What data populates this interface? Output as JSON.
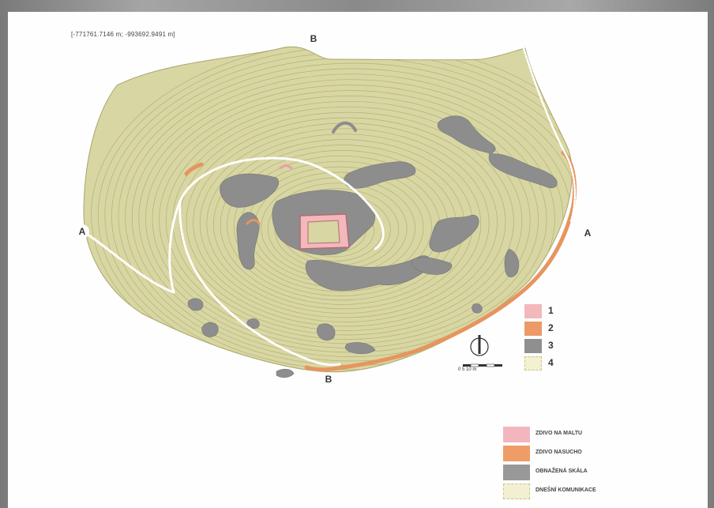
{
  "coordinate_label": "[-771761.7146 m; -993692.9491 m]",
  "section_markers": {
    "b_top": "B",
    "a_left": "A",
    "a_right": "A",
    "b_bottom": "B"
  },
  "legend_numbered": [
    {
      "num": "1",
      "color": "#f2b8bc"
    },
    {
      "num": "2",
      "color": "#ec9a67"
    },
    {
      "num": "3",
      "color": "#8f8f8f"
    },
    {
      "num": "4",
      "color": "#f3f1cf"
    }
  ],
  "legend_described": [
    {
      "label": "ZDIVO NA MALTU",
      "color": "#f3b6bf"
    },
    {
      "label": "ZDIVO NASUCHO",
      "color": "#ee9d69"
    },
    {
      "label": "OBNAŽENÁ SKÁLA",
      "color": "#999999"
    },
    {
      "label": "DNEŠNÍ KOMUNIKACE",
      "color": "#f2f0d1"
    }
  ],
  "scale_bar": {
    "label": "0      5      10 m"
  },
  "colors": {
    "terrain": "#d9d7a3",
    "contour": "#b4b277",
    "rock": "#8c8c8c",
    "masonry_mortar": "#f2b8bc",
    "masonry_dry": "#e6955f",
    "road": "#ffffff"
  }
}
